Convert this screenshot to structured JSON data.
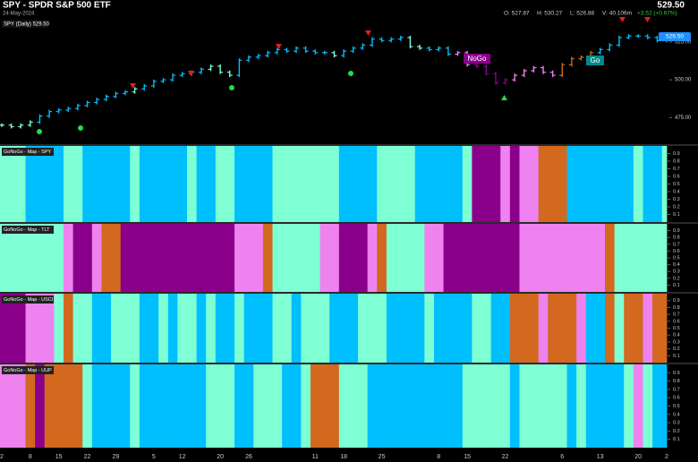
{
  "header": {
    "title": "SPY - SPDR S&P 500 ETF",
    "date": "24-May-2024",
    "last": "529.50",
    "open": "O: 527.87",
    "high": "H: 530.27",
    "low": "L: 526.88",
    "volume": "V: 40.106m",
    "change": "+3.52 (+0.67%)"
  },
  "palette": {
    "a": "#7fffd4",
    "b": "#00bfff",
    "p": "#ee82ee",
    "m": "#8b008b",
    "o": "#d2691e"
  },
  "chart_data": [
    {
      "type": "ohlc",
      "label": "SPY (Daily) 529.50",
      "annotations": [
        "NoGo",
        "Go"
      ],
      "categories": [
        "2",
        null,
        null,
        "8",
        null,
        null,
        "15",
        null,
        null,
        "22",
        null,
        null,
        "29",
        null,
        null,
        null,
        "5",
        null,
        null,
        "12",
        null,
        null,
        null,
        "20",
        null,
        null,
        "26",
        null,
        null,
        null,
        null,
        null,
        null,
        "11",
        null,
        null,
        "18",
        null,
        null,
        null,
        "25",
        null,
        null,
        null,
        null,
        null,
        "8",
        null,
        null,
        "15",
        null,
        null,
        null,
        "22",
        null,
        null,
        null,
        null,
        null,
        "6",
        null,
        null,
        null,
        "13",
        null,
        null,
        null,
        "20",
        null,
        null,
        "2"
      ],
      "values": [
        470,
        469,
        470,
        472,
        476,
        479,
        480,
        481,
        483,
        485,
        487,
        489,
        491,
        492,
        494,
        496,
        499,
        500,
        503,
        504,
        505,
        507,
        509,
        505,
        503,
        513,
        515,
        516,
        518,
        520,
        519,
        521,
        519,
        518,
        518,
        516,
        519,
        521,
        523,
        527,
        526,
        527,
        528,
        522,
        521,
        520,
        521,
        517,
        518,
        510,
        509,
        504,
        498,
        500,
        503,
        506,
        508,
        505,
        503,
        510,
        514,
        515,
        518,
        520,
        523,
        528,
        529,
        529,
        528,
        526,
        529.5
      ],
      "bar_colors": "aaaabbbbbbbbbbabbbbbbbaaabbbbbbbbbbabbbbbbbaabbbppmmmmpppppoooobbbbbbbb",
      "ylim": [
        458,
        541
      ],
      "yticks": [
        {
          "value": 475,
          "label": "475.00"
        },
        {
          "value": 500,
          "label": "500.00"
        },
        {
          "value": 525,
          "label": "525.00"
        }
      ]
    },
    {
      "type": "heatmap",
      "title": "GoNoGo - Map - SPY",
      "cells": "aaabbbbaabbbbbabbbbbabbaabbbbaaaaaaabbbbaaaabbbbbammmpmppooobbbbbbbabba",
      "ylim": [
        0,
        1
      ],
      "yticks": [
        0.1,
        0.2,
        0.3,
        0.4,
        0.5,
        0.6,
        0.7,
        0.8,
        0.9
      ]
    },
    {
      "type": "heatmap",
      "title": "GoNoGo - Map - TLT",
      "cells": "aaaaaaapmmpoommmmmmmmmmmmpppoaaaaappmmmpoaaaappmmmmmmmmpppppppppoaaaaaa",
      "ylim": [
        0,
        1
      ],
      "yticks": [
        0.1,
        0.2,
        0.3,
        0.4,
        0.5,
        0.6,
        0.7,
        0.8,
        0.9
      ]
    },
    {
      "type": "heatmap",
      "title": "GoNoGo - Map - USCI",
      "cells": "mmmpppaoaabbaaabbabaababbabbbaabaaabbbaaabbbbabbbbaabbooopooopbboaoopoo",
      "ylim": [
        0,
        1
      ],
      "yticks": [
        0.1,
        0.2,
        0.3,
        0.4,
        0.5,
        0.6,
        0.7,
        0.8,
        0.9
      ]
    },
    {
      "type": "heatmap",
      "title": "GoNoGo - Map - UUP",
      "cells": "pppomooooabbbbabbbbbbbaaabbaaabbaoooaaabbbbbbbbbbaaaaabaaaaababbbbapabb",
      "ylim": [
        0,
        1
      ],
      "yticks": [
        0.1,
        0.2,
        0.3,
        0.4,
        0.5,
        0.6,
        0.7,
        0.8,
        0.9
      ]
    }
  ]
}
